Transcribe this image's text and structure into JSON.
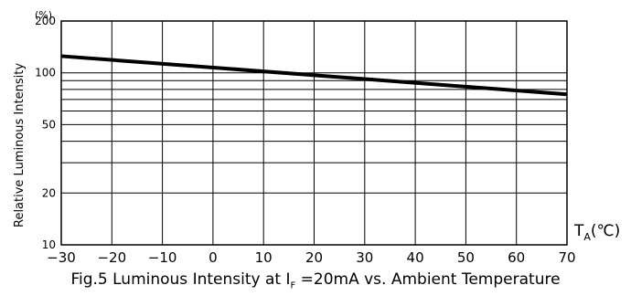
{
  "chart_data": {
    "type": "line",
    "caption_prefix": "Fig.5 Luminous Intensity at I",
    "caption_sub": "F",
    "caption_suffix": " =20mA vs. Ambient Temperature",
    "ylabel": "Relative Luminous Intensity",
    "y_unit": "(%)",
    "xlabel_main": "T",
    "xlabel_sub": "A",
    "xlabel_unit": "(℃)",
    "y_scale": "log",
    "xlim": [
      -30,
      70
    ],
    "ylim": [
      10,
      200
    ],
    "x_ticks": [
      "−30",
      "−20",
      "−10",
      "0",
      "10",
      "20",
      "30",
      "40",
      "50",
      "60",
      "70"
    ],
    "x_tick_values": [
      -30,
      -20,
      -10,
      0,
      10,
      20,
      30,
      40,
      50,
      60,
      70
    ],
    "y_ticks": [
      "200",
      "100",
      "50",
      "20",
      "10"
    ],
    "y_tick_values": [
      200,
      100,
      50,
      20,
      10
    ],
    "y_gridlines": [
      10,
      20,
      30,
      40,
      50,
      60,
      70,
      80,
      90,
      100,
      200
    ],
    "grid": true,
    "series": [
      {
        "x": [
          -30,
          70
        ],
        "y": [
          125,
          75
        ]
      }
    ]
  }
}
